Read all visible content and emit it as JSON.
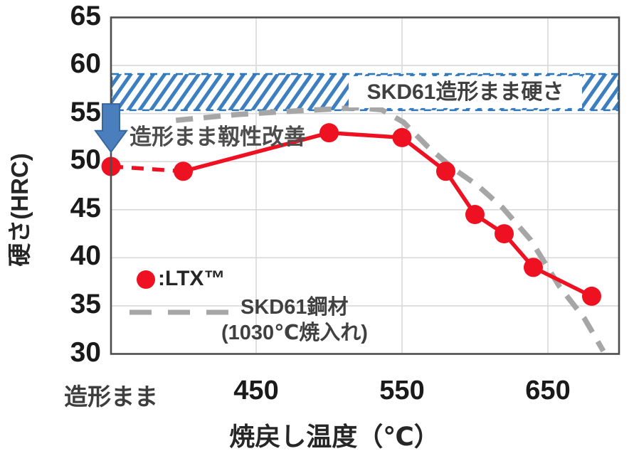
{
  "chart_data": {
    "type": "line",
    "title": "",
    "xlabel": "焼戻し温度（℃）",
    "ylabel": "硬さ(HRC)",
    "ylim": [
      30,
      65
    ],
    "grid": true,
    "y_ticks": [
      65,
      60,
      55,
      50,
      45,
      40,
      35,
      30
    ],
    "x_ticks": [
      {
        "label": "造形まま",
        "value": "as-built"
      },
      {
        "label": "450",
        "value": 450
      },
      {
        "label": "550",
        "value": 550
      },
      {
        "label": "650",
        "value": 650
      }
    ],
    "band": {
      "label": "SKD61造形まま硬さ",
      "y_from": 55.5,
      "y_to": 59,
      "style": "blue diagonal hatch with dashed blue border, full plot width"
    },
    "series": [
      {
        "name": "LTX",
        "legend_label": ":LTX™",
        "color": "#ee1122",
        "marker": "circle",
        "line_style": "solid; dashed segment between as-built point and 400℃ point",
        "points": [
          {
            "x": "as-built",
            "y": 49.5
          },
          {
            "x": 400,
            "y": 49
          },
          {
            "x": 500,
            "y": 53
          },
          {
            "x": 550,
            "y": 52.5
          },
          {
            "x": 580,
            "y": 49
          },
          {
            "x": 600,
            "y": 44.5
          },
          {
            "x": 620,
            "y": 42.5
          },
          {
            "x": 640,
            "y": 39
          },
          {
            "x": 680,
            "y": 36
          }
        ]
      },
      {
        "name": "SKD61鋼材(1030℃焼入れ)",
        "legend_label_line1": "SKD61鋼材",
        "legend_label_line2": "(1030℃焼入れ)",
        "color": "#a6a6a6",
        "marker": "none",
        "line_style": "dashed",
        "points": [
          {
            "x": 395,
            "y": 54.3
          },
          {
            "x": 437,
            "y": 54.9
          },
          {
            "x": 480,
            "y": 55.3
          },
          {
            "x": 520,
            "y": 55.6
          },
          {
            "x": 536,
            "y": 55.4
          },
          {
            "x": 551,
            "y": 54.1
          },
          {
            "x": 568,
            "y": 51.5
          },
          {
            "x": 585,
            "y": 49.3
          },
          {
            "x": 602,
            "y": 47.5
          },
          {
            "x": 619,
            "y": 45.2
          },
          {
            "x": 638,
            "y": 41.9
          },
          {
            "x": 658,
            "y": 37
          },
          {
            "x": 675,
            "y": 33.7
          },
          {
            "x": 688,
            "y": 30.3
          }
        ]
      }
    ],
    "annotations": [
      {
        "id": "toughness-note",
        "type": "text",
        "text": "造形まま靱性改善"
      },
      {
        "id": "as-built-arrow",
        "type": "down-arrow",
        "x": "as-built",
        "y_from": 56,
        "y_to": 51
      }
    ],
    "legend_position": "inside lower-left",
    "colors": {
      "ltx_red": "#ee1122",
      "skd61_gray": "#a6a6a6",
      "band_blue": "#2e78ba",
      "hatch_blue": "#3c7ebf",
      "arrow_fill": "#4a7ebd",
      "arrow_border": "#38669f",
      "gridline": "#d9d9d9",
      "plot_border": "#4d4d4d"
    }
  }
}
